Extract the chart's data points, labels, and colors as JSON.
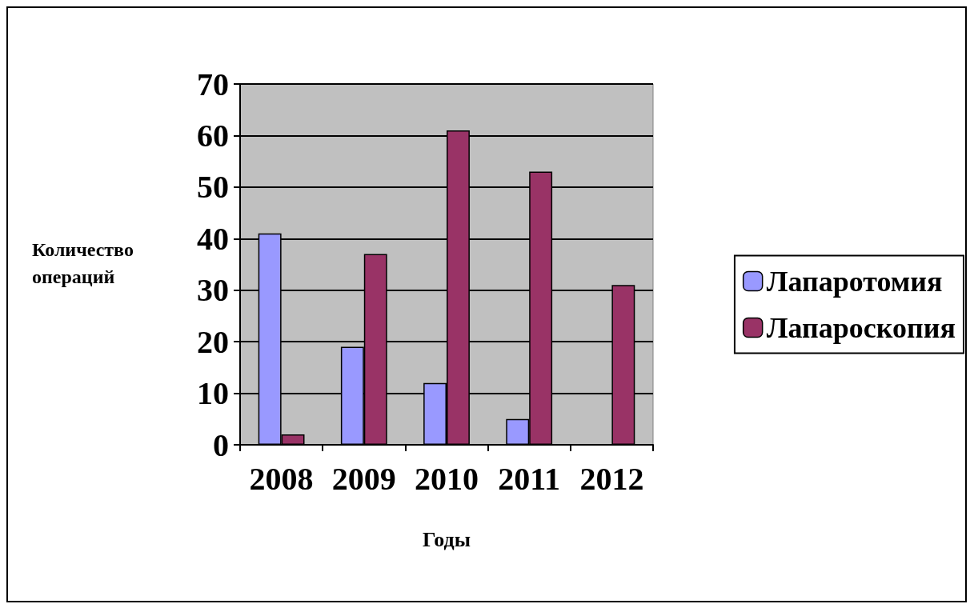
{
  "chart_data": {
    "type": "bar",
    "xlabel": "Годы",
    "ylabel": "Количество операций",
    "categories": [
      "2008",
      "2009",
      "2010",
      "2011",
      "2012"
    ],
    "series": [
      {
        "name": "Лапаротомия",
        "color": "#9999ff",
        "values": [
          41,
          19,
          12,
          5,
          null
        ]
      },
      {
        "name": "Лапароскопия",
        "color": "#993366",
        "values": [
          2,
          37,
          61,
          53,
          31
        ]
      }
    ],
    "ylim": [
      0,
      70
    ],
    "yticks": [
      0,
      10,
      20,
      30,
      40,
      50,
      60,
      70
    ],
    "grid": "y",
    "legend": "right"
  }
}
